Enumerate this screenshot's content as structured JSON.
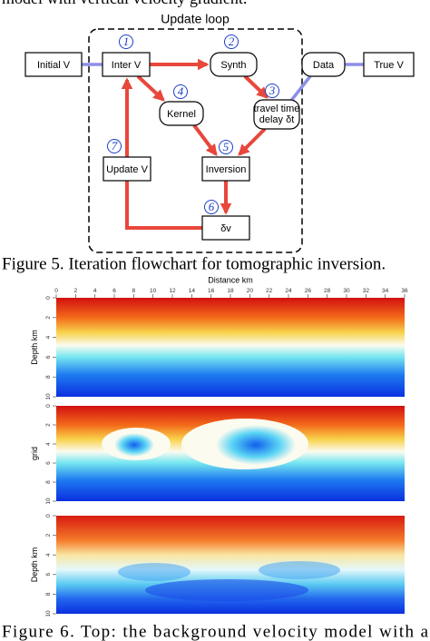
{
  "header_fragment": "model with vertical velocity gradient.",
  "figure5": {
    "loop_label": "Update loop",
    "nodes": [
      {
        "label": "Initial V"
      },
      {
        "label": "Inter V",
        "step": "1"
      },
      {
        "label": "Synth",
        "step": "2"
      },
      {
        "label": "travel time delay δt",
        "step": "3"
      },
      {
        "label": "Kernel",
        "step": "4"
      },
      {
        "label": "Inversion",
        "step": "5"
      },
      {
        "label": "δv",
        "step": "6"
      },
      {
        "label": "Update V",
        "step": "7"
      },
      {
        "label": "Data"
      },
      {
        "label": "True V"
      }
    ],
    "caption": "Figure 5. Iteration flowchart for tomographic inversion."
  },
  "figure6": {
    "x_axis_label": "Distance km",
    "x_ticks": [
      0,
      2,
      4,
      6,
      8,
      10,
      12,
      14,
      16,
      18,
      20,
      22,
      24,
      26,
      28,
      30,
      32,
      34,
      36
    ],
    "panels": [
      {
        "y_label": "Depth km",
        "y_ticks": [
          0,
          2,
          4,
          6,
          8,
          10
        ]
      },
      {
        "y_label": "grid",
        "y_ticks": [
          0,
          2,
          4,
          6,
          8,
          10
        ]
      },
      {
        "y_label": "Depth km",
        "y_ticks": [
          0,
          2,
          4,
          6,
          8,
          10
        ]
      }
    ],
    "caption": "Figure 6. Top: the background velocity model with a"
  }
}
